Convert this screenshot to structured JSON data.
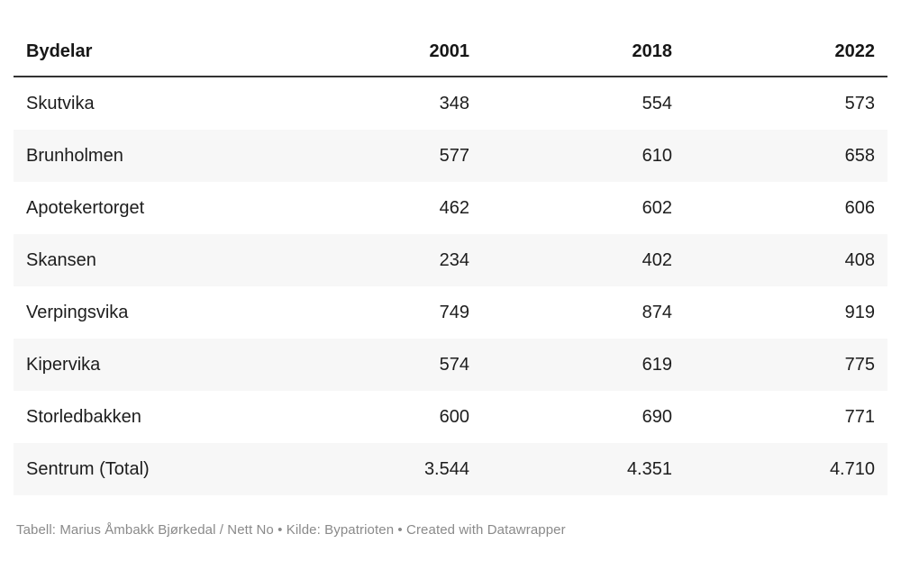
{
  "table": {
    "columns": [
      "Bydelar",
      "2001",
      "2018",
      "2022"
    ],
    "rows": [
      {
        "label": "Skutvika",
        "values": [
          "348",
          "554",
          "573"
        ]
      },
      {
        "label": "Brunholmen",
        "values": [
          "577",
          "610",
          "658"
        ]
      },
      {
        "label": "Apotekertorget",
        "values": [
          "462",
          "602",
          "606"
        ]
      },
      {
        "label": "Skansen",
        "values": [
          "234",
          "402",
          "408"
        ]
      },
      {
        "label": "Verpingsvika",
        "values": [
          "749",
          "874",
          "919"
        ]
      },
      {
        "label": "Kipervika",
        "values": [
          "574",
          "619",
          "775"
        ]
      },
      {
        "label": "Storledbakken",
        "values": [
          "600",
          "690",
          "771"
        ]
      },
      {
        "label": "Sentrum (Total)",
        "values": [
          "3.544",
          "4.351",
          "4.710"
        ]
      }
    ]
  },
  "chart_data": {
    "type": "table",
    "title": "",
    "categories": [
      "Skutvika",
      "Brunholmen",
      "Apotekertorget",
      "Skansen",
      "Verpingsvika",
      "Kipervika",
      "Storledbakken",
      "Sentrum (Total)"
    ],
    "series": [
      {
        "name": "2001",
        "values": [
          348,
          577,
          462,
          234,
          749,
          574,
          600,
          3544
        ]
      },
      {
        "name": "2018",
        "values": [
          554,
          610,
          602,
          402,
          874,
          619,
          690,
          4351
        ]
      },
      {
        "name": "2022",
        "values": [
          573,
          658,
          606,
          408,
          919,
          775,
          771,
          4710
        ]
      }
    ],
    "first_column_header": "Bydelar",
    "layout_hints": {
      "zebra_striping": true,
      "numbers_right_aligned": true,
      "thousands_separator": "."
    }
  },
  "footer": {
    "byline": "Tabell: Marius Åmbakk Bjørkedal / Nett No",
    "source": "Kilde: Bypatrioten",
    "created": "Created with Datawrapper",
    "separator": " • "
  },
  "colors": {
    "background": "#ffffff",
    "stripe": "#f7f7f7",
    "header_border": "#333333",
    "text": "#1d1d1d",
    "header_text": "#161616",
    "footer_text": "#8a8a8a"
  }
}
